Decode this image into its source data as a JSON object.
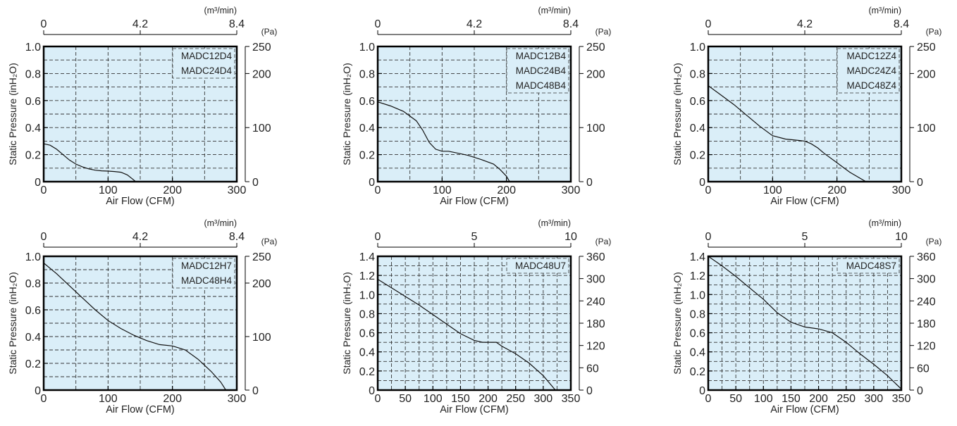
{
  "chart_data": [
    {
      "type": "line",
      "xlabel": "Air Flow  (CFM)",
      "ylabel_left": "Static Pressure  (inH₂O)",
      "top_unit": "(m³/min)",
      "right_unit": "(Pa)",
      "xlim": [
        0,
        300
      ],
      "ylim": [
        0,
        1.0
      ],
      "x_ticks": [
        0,
        100,
        200,
        300
      ],
      "y_ticks": [
        0,
        0.2,
        0.4,
        0.6,
        0.8,
        1.0
      ],
      "y_tick_labels": [
        "0",
        "0.2",
        "0.4",
        "0.6",
        "0.8",
        "1.0"
      ],
      "top_ticks": [
        "0",
        "4.2",
        "8.4"
      ],
      "right_ticks": [
        "0",
        "100",
        "200",
        "250"
      ],
      "right_max": 250,
      "grid": true,
      "legend": [
        "MADC12D4",
        "MADC24D4"
      ],
      "series": [
        {
          "x": [
            0,
            10,
            20,
            30,
            40,
            50,
            60,
            70,
            80,
            90,
            100,
            110,
            120,
            130,
            138,
            143
          ],
          "y": [
            0.28,
            0.27,
            0.24,
            0.2,
            0.16,
            0.13,
            0.11,
            0.095,
            0.085,
            0.08,
            0.078,
            0.075,
            0.07,
            0.05,
            0.02,
            0
          ]
        }
      ]
    },
    {
      "type": "line",
      "xlabel": "Air Flow  (CFM)",
      "ylabel_left": "Static Pressure  (inH₂O)",
      "top_unit": "(m³/min)",
      "right_unit": "(Pa)",
      "xlim": [
        0,
        300
      ],
      "ylim": [
        0,
        1.0
      ],
      "x_ticks": [
        0,
        100,
        200,
        300
      ],
      "y_ticks": [
        0,
        0.2,
        0.4,
        0.6,
        0.8,
        1.0
      ],
      "y_tick_labels": [
        "0",
        "0.2",
        "0.4",
        "0.6",
        "0.8",
        "1.0"
      ],
      "top_ticks": [
        "0",
        "4.2",
        "8.4"
      ],
      "right_ticks": [
        "0",
        "100",
        "200",
        "250"
      ],
      "right_max": 250,
      "grid": true,
      "legend": [
        "MADC12B4",
        "MADC24B4",
        "MADC48B4"
      ],
      "series": [
        {
          "x": [
            0,
            20,
            40,
            60,
            70,
            80,
            90,
            100,
            110,
            120,
            140,
            160,
            180,
            190,
            200,
            205
          ],
          "y": [
            0.59,
            0.56,
            0.52,
            0.45,
            0.38,
            0.29,
            0.24,
            0.225,
            0.225,
            0.215,
            0.195,
            0.165,
            0.13,
            0.09,
            0.04,
            0
          ]
        }
      ]
    },
    {
      "type": "line",
      "xlabel": "Air Flow  (CFM)",
      "ylabel_left": "Static Pressure  (inH₂O)",
      "top_unit": "(m³/min)",
      "right_unit": "(Pa)",
      "xlim": [
        0,
        300
      ],
      "ylim": [
        0,
        1.0
      ],
      "x_ticks": [
        0,
        100,
        200,
        300
      ],
      "y_ticks": [
        0,
        0.2,
        0.4,
        0.6,
        0.8,
        1.0
      ],
      "y_tick_labels": [
        "0",
        "0.2",
        "0.4",
        "0.6",
        "0.8",
        "1.0"
      ],
      "top_ticks": [
        "0",
        "4.2",
        "8.4"
      ],
      "right_ticks": [
        "0",
        "100",
        "200",
        "250"
      ],
      "right_max": 250,
      "grid": true,
      "legend": [
        "MADC12Z4",
        "MADC24Z4",
        "MADC48Z4"
      ],
      "series": [
        {
          "x": [
            0,
            20,
            40,
            60,
            80,
            100,
            120,
            140,
            150,
            160,
            170,
            180,
            200,
            220,
            245
          ],
          "y": [
            0.71,
            0.64,
            0.57,
            0.49,
            0.41,
            0.34,
            0.315,
            0.305,
            0.3,
            0.28,
            0.25,
            0.21,
            0.14,
            0.07,
            0
          ]
        }
      ]
    },
    {
      "type": "line",
      "xlabel": "Air Flow  (CFM)",
      "ylabel_left": "Static Pressure  (inH₂O)",
      "top_unit": "(m³/min)",
      "right_unit": "(Pa)",
      "xlim": [
        0,
        300
      ],
      "ylim": [
        0,
        1.0
      ],
      "x_ticks": [
        0,
        100,
        200,
        300
      ],
      "y_ticks": [
        0,
        0.2,
        0.4,
        0.6,
        0.8,
        1.0
      ],
      "y_tick_labels": [
        "0",
        "0.2",
        "0.4",
        "0.6",
        "0.8",
        "1.0"
      ],
      "top_ticks": [
        "0",
        "4.2",
        "8.4"
      ],
      "right_ticks": [
        "0",
        "100",
        "200",
        "250"
      ],
      "right_max": 250,
      "grid": true,
      "legend": [
        "MADC12H7",
        "MADC48H4"
      ],
      "series": [
        {
          "x": [
            0,
            20,
            40,
            60,
            80,
            100,
            120,
            140,
            160,
            180,
            200,
            220,
            240,
            260,
            275,
            283
          ],
          "y": [
            0.95,
            0.87,
            0.78,
            0.69,
            0.6,
            0.52,
            0.46,
            0.41,
            0.37,
            0.34,
            0.33,
            0.3,
            0.23,
            0.14,
            0.06,
            0
          ]
        }
      ]
    },
    {
      "type": "line",
      "xlabel": "Air Flow  (CFM)",
      "ylabel_left": "Static Pressure  (inH₂O)",
      "top_unit": "(m³/min)",
      "right_unit": "(Pa)",
      "xlim": [
        0,
        350
      ],
      "ylim": [
        0,
        1.4
      ],
      "x_ticks": [
        0,
        50,
        100,
        150,
        200,
        250,
        300,
        350
      ],
      "y_ticks": [
        0,
        0.2,
        0.4,
        0.6,
        0.8,
        1.0,
        1.2,
        1.4
      ],
      "y_tick_labels": [
        "0",
        "0.2",
        "0.4",
        "0.6",
        "0.8",
        "1.0",
        "1.2",
        "1.4"
      ],
      "top_ticks": [
        "0",
        "5",
        "10"
      ],
      "right_ticks": [
        "0",
        "60",
        "120",
        "180",
        "240",
        "300",
        "360"
      ],
      "right_max": 360,
      "grid": true,
      "legend": [
        "MADC48U7"
      ],
      "series": [
        {
          "x": [
            0,
            25,
            50,
            75,
            100,
            125,
            150,
            175,
            190,
            200,
            215,
            225,
            250,
            275,
            300,
            322
          ],
          "y": [
            1.16,
            1.07,
            0.98,
            0.89,
            0.79,
            0.69,
            0.59,
            0.52,
            0.5,
            0.5,
            0.5,
            0.46,
            0.38,
            0.28,
            0.15,
            0
          ]
        }
      ]
    },
    {
      "type": "line",
      "xlabel": "Air Flow  (CFM)",
      "ylabel_left": "Static Pressure  (inH₂O)",
      "top_unit": "(m³/min)",
      "right_unit": "(Pa)",
      "xlim": [
        0,
        350
      ],
      "ylim": [
        0,
        1.4
      ],
      "x_ticks": [
        0,
        50,
        100,
        150,
        200,
        250,
        300,
        350
      ],
      "y_ticks": [
        0,
        0.2,
        0.4,
        0.6,
        0.8,
        1.0,
        1.2,
        1.4
      ],
      "y_tick_labels": [
        "0",
        "0.2",
        "0.4",
        "0.6",
        "0.8",
        "1.0",
        "1.2",
        "1.4"
      ],
      "top_ticks": [
        "0",
        "5",
        "10"
      ],
      "right_ticks": [
        "0",
        "60",
        "120",
        "180",
        "240",
        "300",
        "360"
      ],
      "right_max": 360,
      "grid": true,
      "legend": [
        "MADC48S7"
      ],
      "series": [
        {
          "x": [
            0,
            25,
            50,
            75,
            100,
            125,
            150,
            175,
            200,
            225,
            250,
            275,
            300,
            325,
            350
          ],
          "y": [
            1.4,
            1.3,
            1.19,
            1.07,
            0.95,
            0.81,
            0.71,
            0.66,
            0.64,
            0.6,
            0.5,
            0.38,
            0.27,
            0.15,
            0.01
          ]
        }
      ]
    }
  ]
}
